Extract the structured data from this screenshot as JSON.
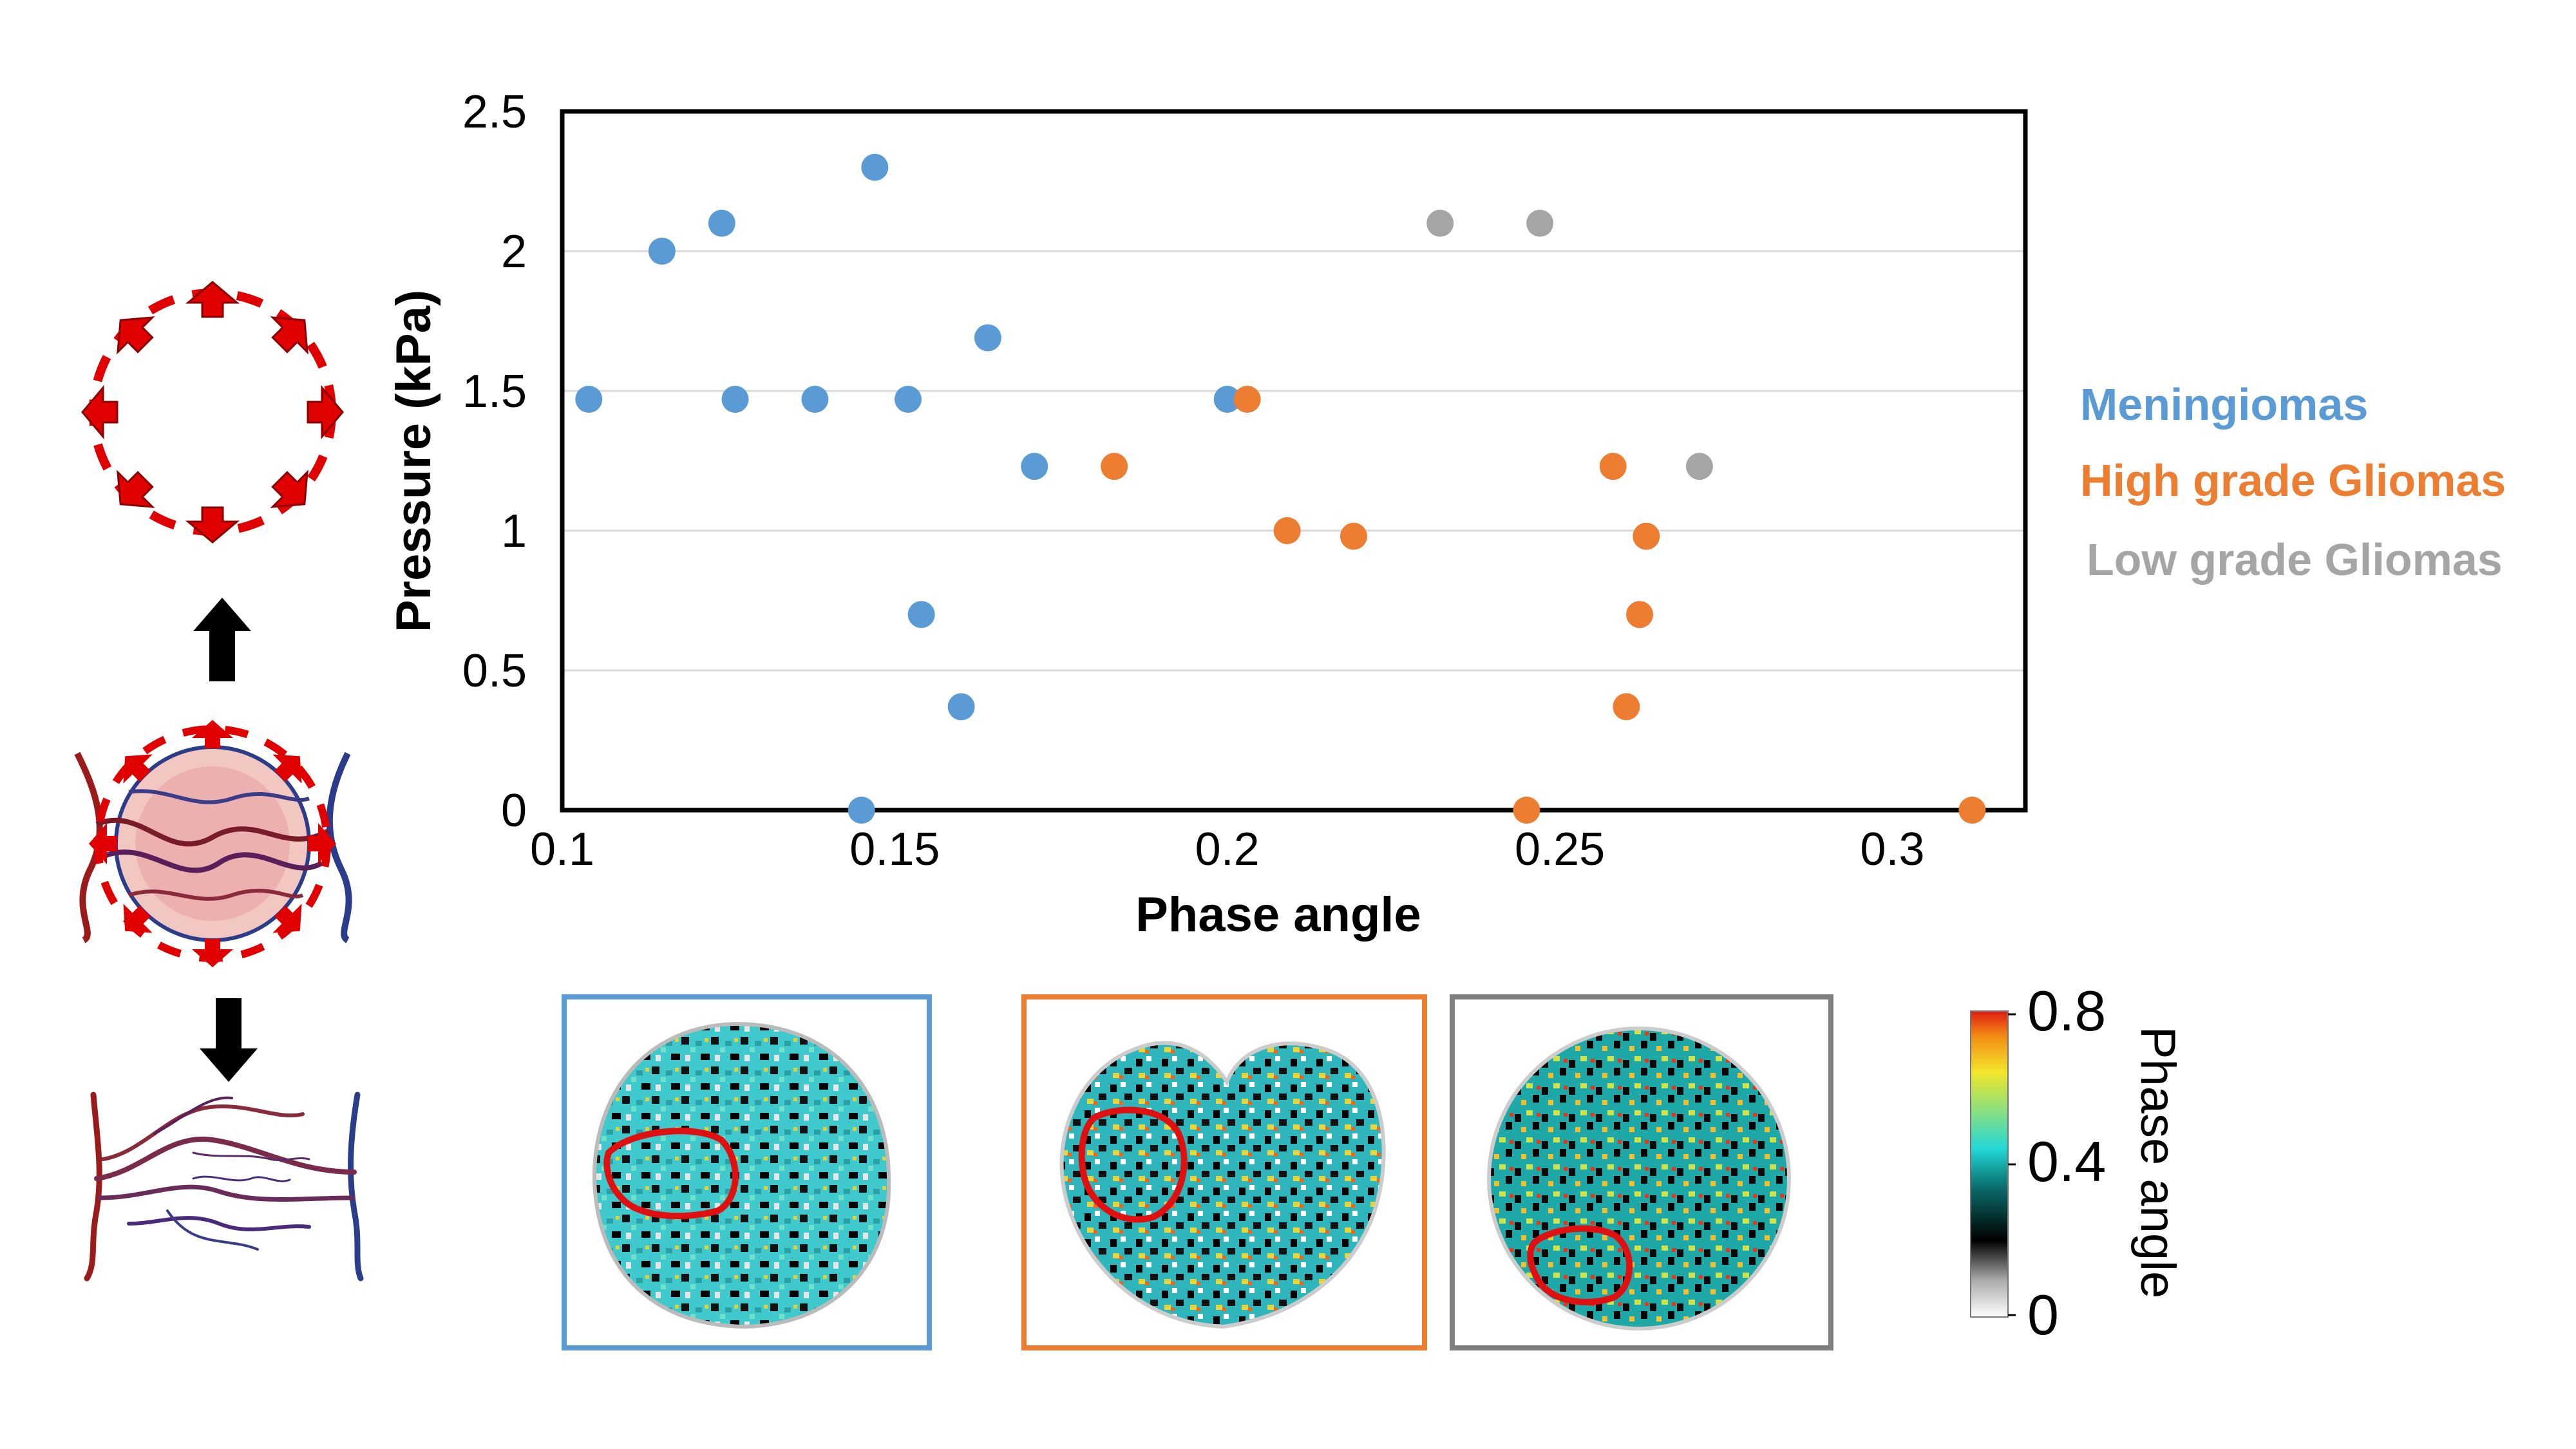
{
  "chart_data": {
    "type": "scatter",
    "title": "",
    "xlabel": "Phase angle",
    "ylabel": "Pressure (kPa)",
    "xlim": [
      0.1,
      0.32
    ],
    "ylim": [
      0,
      2.5
    ],
    "xticks": [
      0.1,
      0.15,
      0.2,
      0.25,
      0.3
    ],
    "xtick_labels": [
      "0.1",
      "0.15",
      "0.2",
      "0.25",
      "0.3"
    ],
    "yticks": [
      0,
      0.5,
      1,
      1.5,
      2,
      2.5
    ],
    "ytick_labels": [
      "0",
      "0.5",
      "1",
      "1.5",
      "2",
      "2.5"
    ],
    "grid": "horizontal",
    "legend_position": "right",
    "series": [
      {
        "name": "Meningiomas",
        "color": "#5b9bd5",
        "points": [
          {
            "x": 0.104,
            "y": 1.47
          },
          {
            "x": 0.115,
            "y": 2.0
          },
          {
            "x": 0.124,
            "y": 2.1
          },
          {
            "x": 0.126,
            "y": 1.47
          },
          {
            "x": 0.138,
            "y": 1.47
          },
          {
            "x": 0.145,
            "y": 0.0
          },
          {
            "x": 0.147,
            "y": 2.3
          },
          {
            "x": 0.152,
            "y": 1.47
          },
          {
            "x": 0.154,
            "y": 0.7
          },
          {
            "x": 0.16,
            "y": 0.37
          },
          {
            "x": 0.164,
            "y": 1.69
          },
          {
            "x": 0.171,
            "y": 1.23
          },
          {
            "x": 0.2,
            "y": 1.47
          }
        ]
      },
      {
        "name": "High grade Gliomas",
        "color": "#ed7d31",
        "points": [
          {
            "x": 0.183,
            "y": 1.23
          },
          {
            "x": 0.203,
            "y": 1.47
          },
          {
            "x": 0.209,
            "y": 1.0
          },
          {
            "x": 0.219,
            "y": 0.98
          },
          {
            "x": 0.245,
            "y": 0.0
          },
          {
            "x": 0.258,
            "y": 1.23
          },
          {
            "x": 0.26,
            "y": 0.37
          },
          {
            "x": 0.262,
            "y": 0.7
          },
          {
            "x": 0.263,
            "y": 0.98
          },
          {
            "x": 0.312,
            "y": 0.0
          }
        ]
      },
      {
        "name": "Low grade Gliomas",
        "color": "#a5a5a5",
        "points": [
          {
            "x": 0.232,
            "y": 2.1
          },
          {
            "x": 0.247,
            "y": 2.1
          },
          {
            "x": 0.271,
            "y": 1.23
          }
        ]
      }
    ],
    "colorbar": {
      "label": "Phase angle",
      "min": 0,
      "max": 0.8,
      "tick_labels": [
        "0.8",
        "0.4",
        "0"
      ]
    },
    "panels": [
      {
        "name": "meningioma",
        "frame_color": "#5b9bd5"
      },
      {
        "name": "high-grade-glioma",
        "frame_color": "#ed7d31"
      },
      {
        "name": "low-grade-glioma",
        "frame_color": "#7f7f7f"
      }
    ]
  }
}
